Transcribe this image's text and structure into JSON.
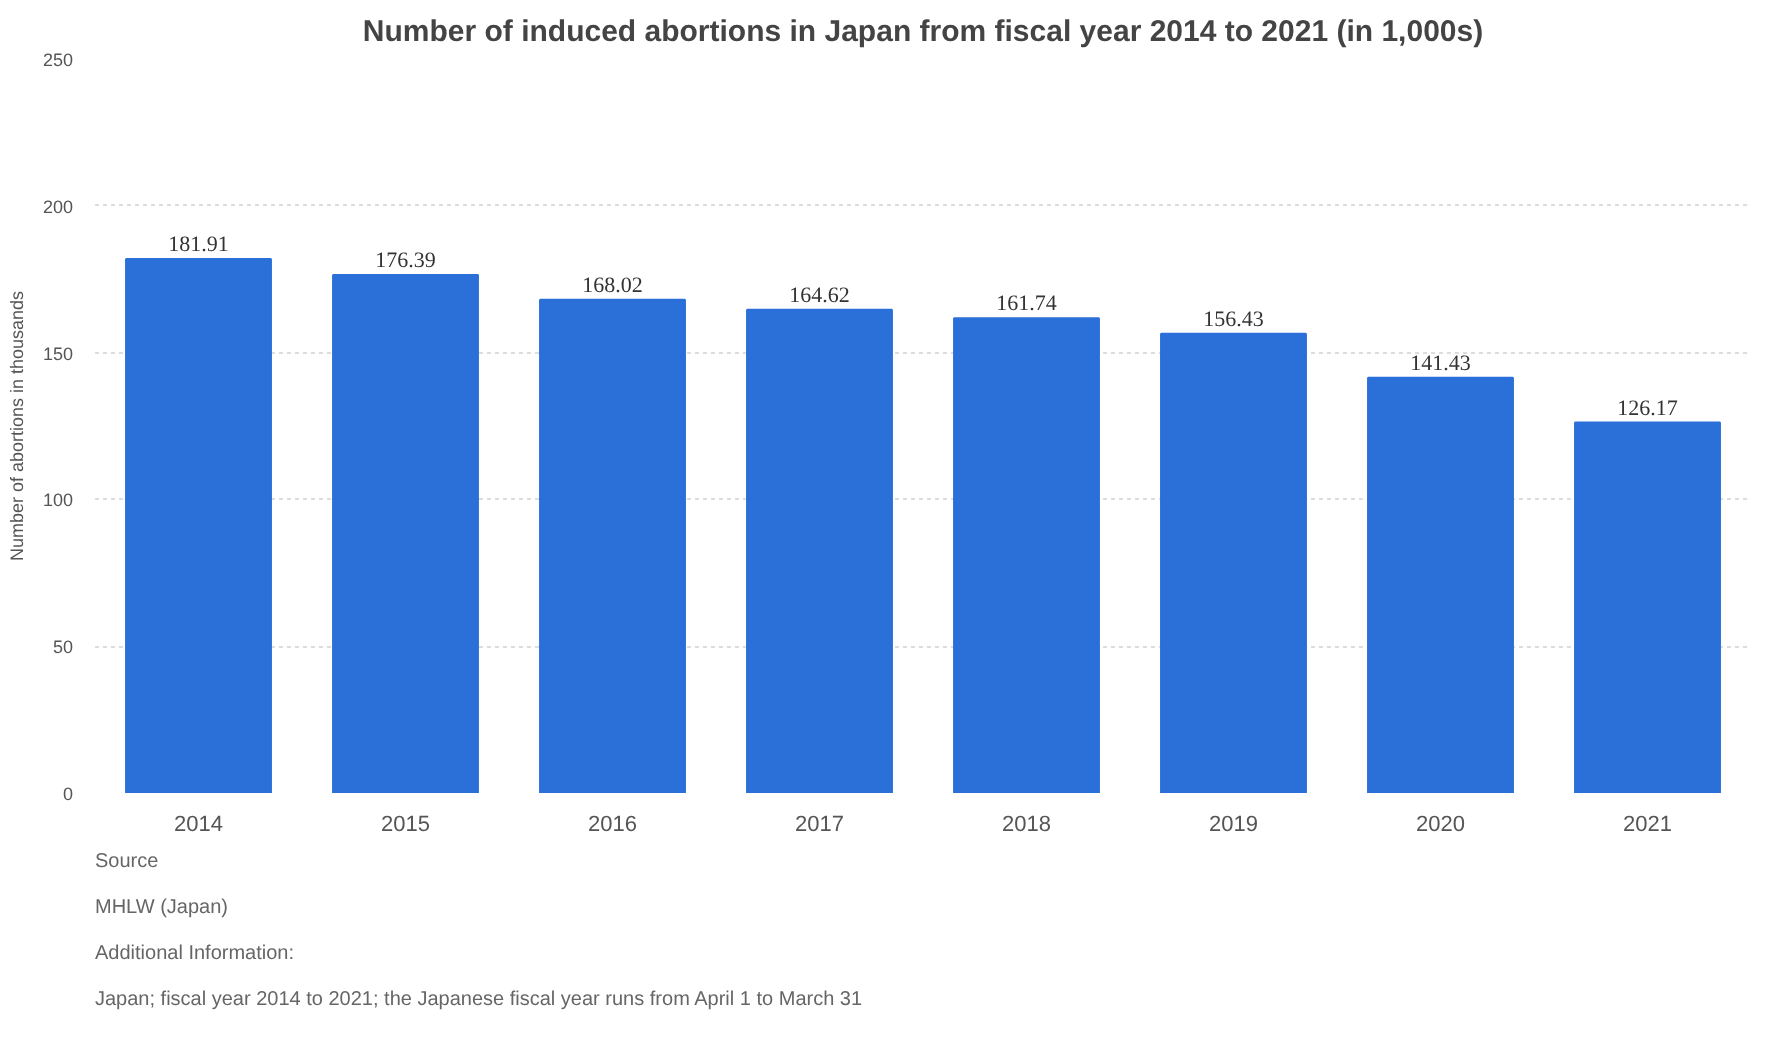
{
  "chart_data": {
    "type": "bar",
    "title": "Number of induced abortions in Japan from fiscal year 2014 to 2021 (in 1,000s)",
    "ylabel": "Number of abortions in thousands",
    "categories": [
      "2014",
      "2015",
      "2016",
      "2017",
      "2018",
      "2019",
      "2020",
      "2021"
    ],
    "values": [
      181.91,
      176.39,
      168.02,
      164.62,
      161.74,
      156.43,
      141.43,
      126.17
    ],
    "color": "#2b6fd9",
    "ylim": [
      0,
      250
    ],
    "yticks": [
      0,
      50,
      100,
      150,
      200,
      250
    ],
    "grid": "y",
    "data_labels": true,
    "annotations": [
      "Source",
      "MHLW (Japan)",
      "Additional Information:",
      "Japan; fiscal year 2014 to 2021; the Japanese fiscal year runs from April 1 to March 31"
    ]
  }
}
